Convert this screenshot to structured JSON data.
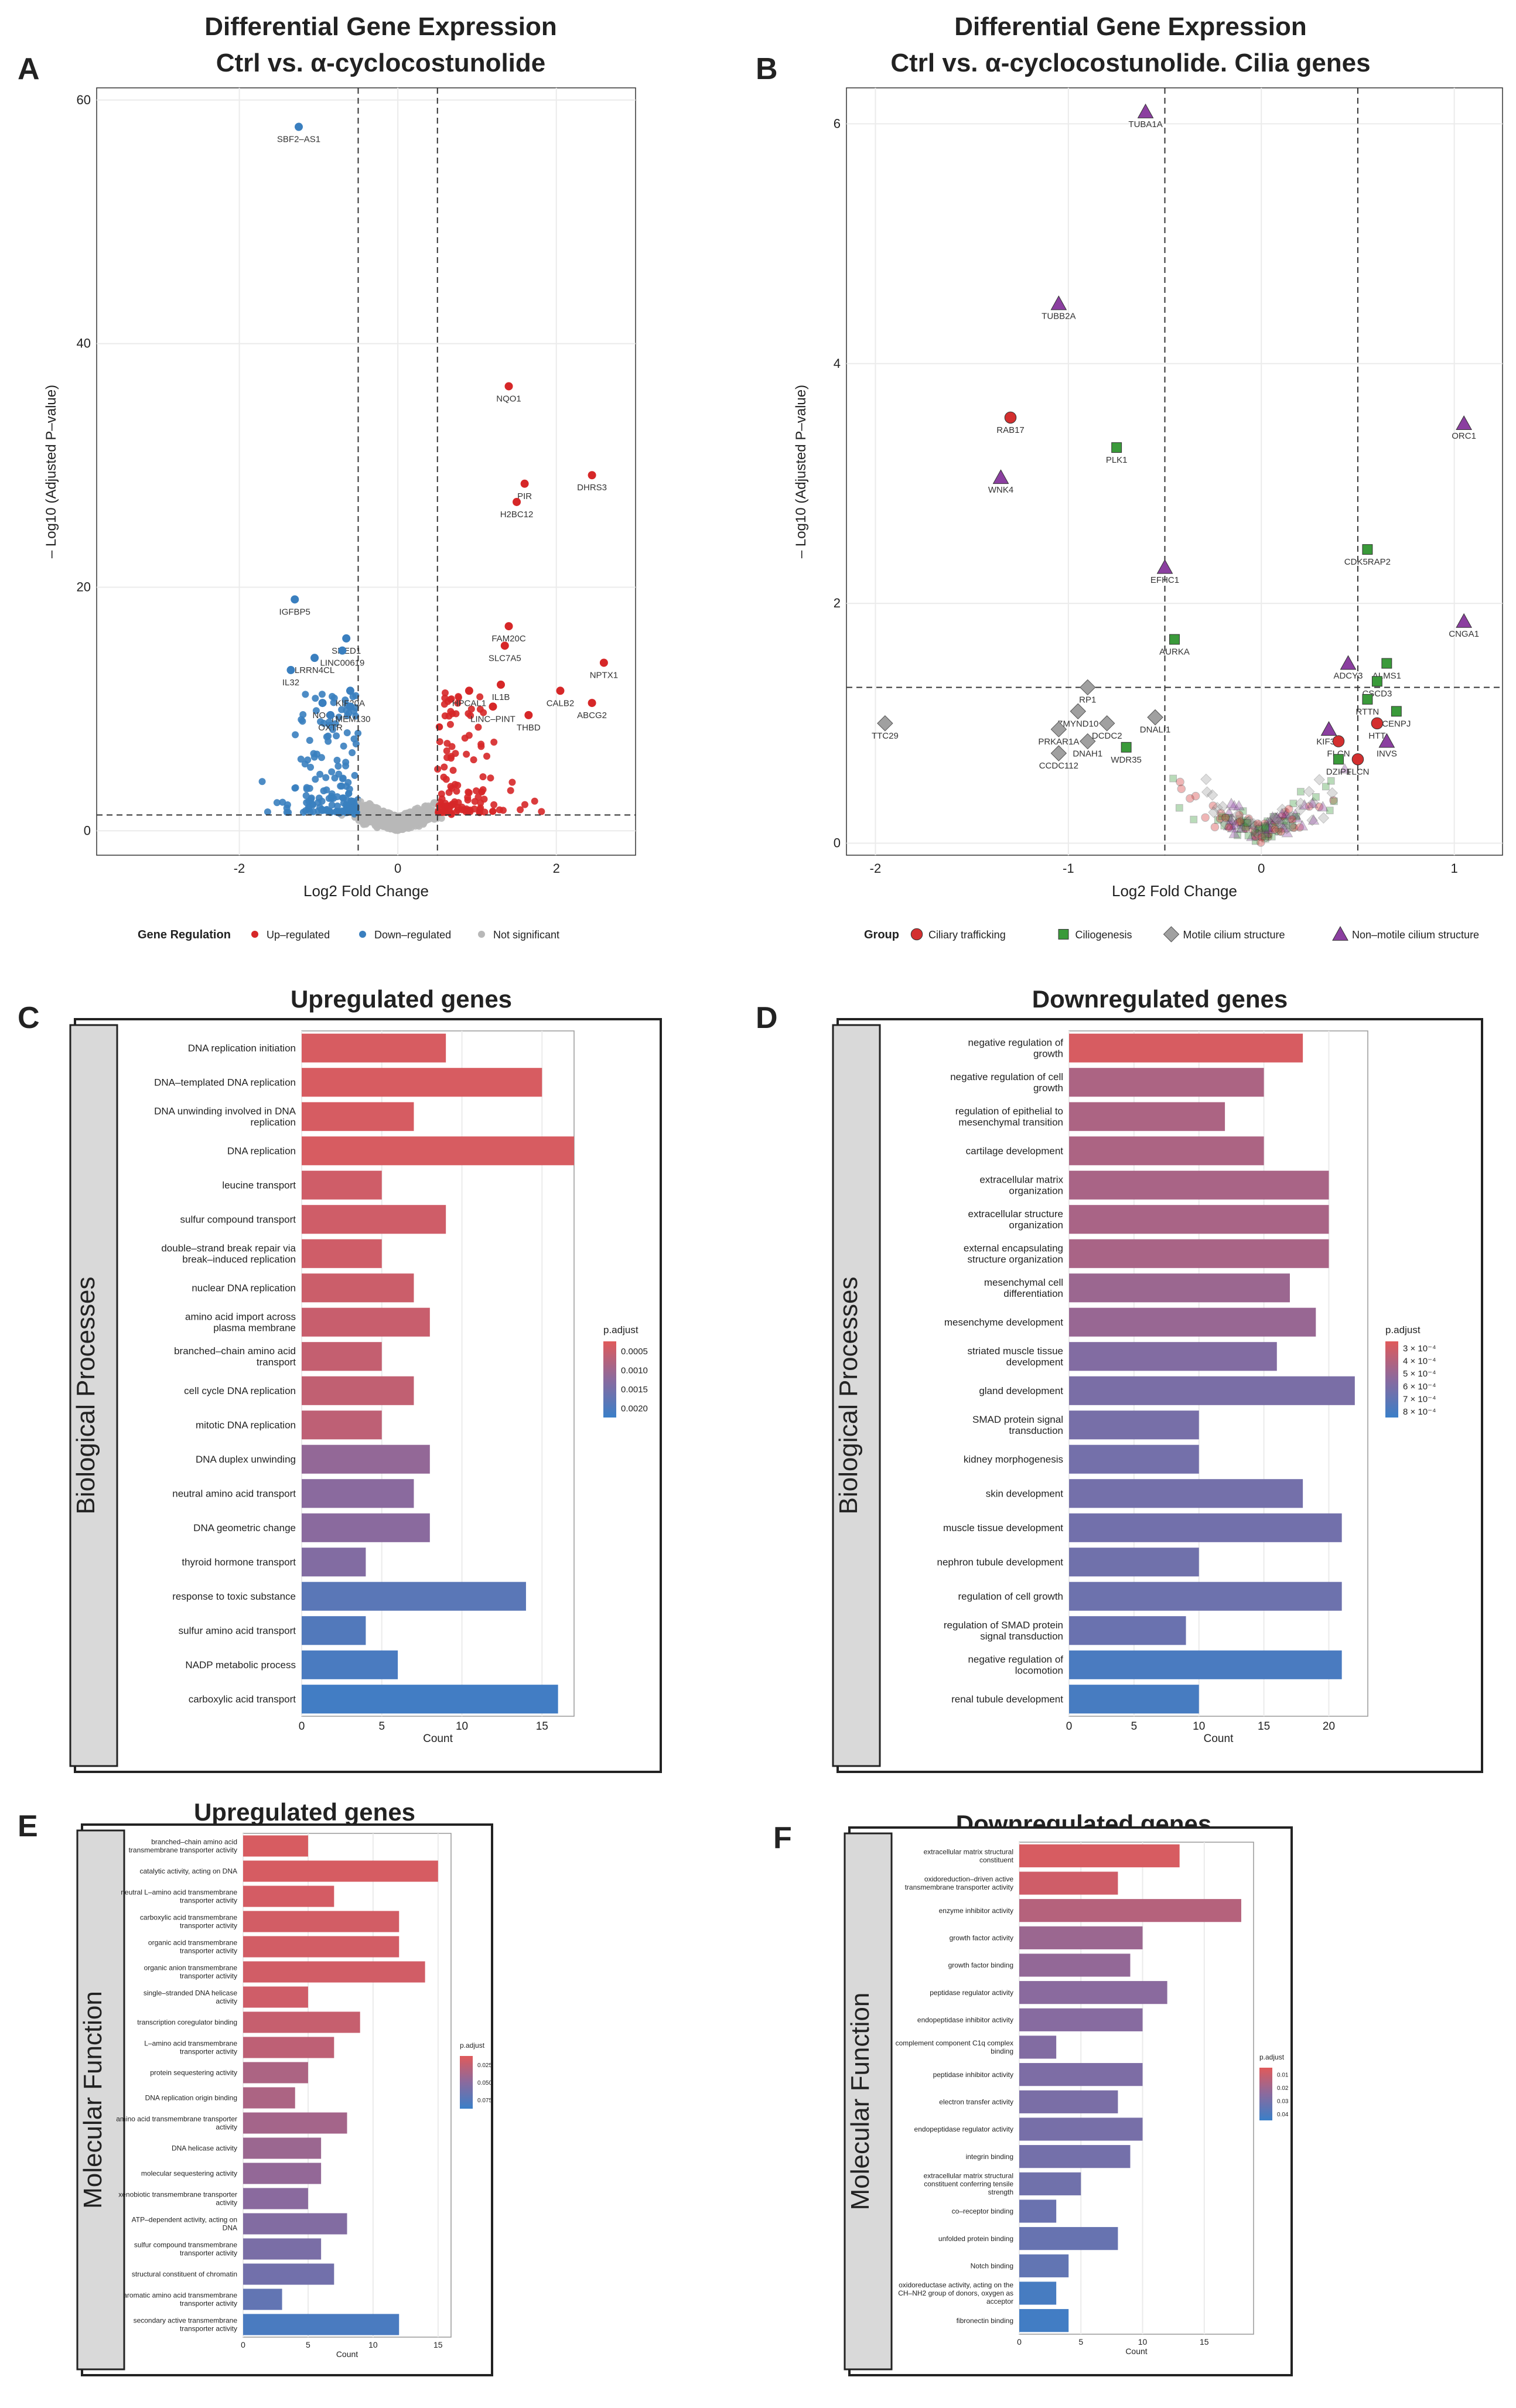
{
  "panels": {
    "A": {
      "letter": "A",
      "title": "Differential Gene Expression",
      "subtitle": "Ctrl vs. α-cyclocostunolide"
    },
    "B": {
      "letter": "B",
      "title": "Differential Gene Expression",
      "subtitle": "Ctrl vs. α-cyclocostunolide. Cilia genes"
    },
    "C": {
      "letter": "C",
      "title": "Upregulated genes",
      "side_label": "Biological Processes"
    },
    "D": {
      "letter": "D",
      "title": "Downregulated genes",
      "side_label": "Biological Processes"
    },
    "E": {
      "letter": "E",
      "title": "Upregulated genes",
      "side_label": "Molecular  Function"
    },
    "F": {
      "letter": "F",
      "title": "Downregulated genes",
      "side_label": "Molecular  Function"
    }
  },
  "colors": {
    "up": "#d62728",
    "down": "#3a7fbf",
    "ns": "#b8b8b8",
    "ciliary": "#d32f2f",
    "ciliogenesis": "#3a9a3a",
    "motile": "#a0a0a0",
    "nonmotile": "#8b3fa0",
    "padj_high": "#e05a5a",
    "padj_low": "#3a7fc8"
  },
  "chart_data": [
    {
      "id": "A",
      "type": "scatter",
      "title": "Differential Gene Expression Ctrl vs. α-cyclocostunolide",
      "xlabel": "Log2 Fold Change",
      "ylabel": "– Log10 (Adjusted P–value)",
      "xlim": [
        -3.8,
        3.0
      ],
      "ylim": [
        -2,
        61
      ],
      "xticks": [
        -2,
        0,
        2
      ],
      "yticks": [
        0,
        20,
        40,
        60
      ],
      "thresholds": {
        "x": [
          -0.5,
          0.5
        ],
        "y": 1.3
      },
      "legend_title": "Gene Regulation",
      "legend": [
        {
          "label": "Up–regulated",
          "color": "#d62728"
        },
        {
          "label": "Down–regulated",
          "color": "#3a7fbf"
        },
        {
          "label": "Not significant",
          "color": "#b8b8b8"
        }
      ],
      "labeled_points": [
        {
          "gene": "SBF2–AS1",
          "x": -1.25,
          "y": 57.8,
          "group": "down"
        },
        {
          "gene": "IGFBP5",
          "x": -1.3,
          "y": 19.0,
          "group": "down"
        },
        {
          "gene": "SNED1",
          "x": -0.65,
          "y": 15.8,
          "group": "down"
        },
        {
          "gene": "LRRN4CL",
          "x": -1.05,
          "y": 14.2,
          "group": "down"
        },
        {
          "gene": "LINC00619",
          "x": -0.7,
          "y": 14.8,
          "group": "down"
        },
        {
          "gene": "IL32",
          "x": -1.35,
          "y": 13.2,
          "group": "down"
        },
        {
          "gene": "KIF20A",
          "x": -0.6,
          "y": 11.5,
          "group": "down"
        },
        {
          "gene": "NOG",
          "x": -0.95,
          "y": 10.5,
          "group": "down"
        },
        {
          "gene": "TMEM130",
          "x": -0.6,
          "y": 10.2,
          "group": "down"
        },
        {
          "gene": "OXTR",
          "x": -0.85,
          "y": 9.5,
          "group": "down"
        },
        {
          "gene": "NQO1",
          "x": 1.4,
          "y": 36.5,
          "group": "up"
        },
        {
          "gene": "PIR",
          "x": 1.6,
          "y": 28.5,
          "group": "up"
        },
        {
          "gene": "DHRS3",
          "x": 2.45,
          "y": 29.2,
          "group": "up"
        },
        {
          "gene": "H2BC12",
          "x": 1.5,
          "y": 27.0,
          "group": "up"
        },
        {
          "gene": "FAM20C",
          "x": 1.4,
          "y": 16.8,
          "group": "up"
        },
        {
          "gene": "SLC7A5",
          "x": 1.35,
          "y": 15.2,
          "group": "up"
        },
        {
          "gene": "NPTX1",
          "x": 2.6,
          "y": 13.8,
          "group": "up"
        },
        {
          "gene": "HPCAL1",
          "x": 0.9,
          "y": 11.5,
          "group": "up"
        },
        {
          "gene": "IL1B",
          "x": 1.3,
          "y": 12.0,
          "group": "up"
        },
        {
          "gene": "CALB2",
          "x": 2.05,
          "y": 11.5,
          "group": "up"
        },
        {
          "gene": "LINC–PINT",
          "x": 1.2,
          "y": 10.2,
          "group": "up"
        },
        {
          "gene": "THBD",
          "x": 1.65,
          "y": 9.5,
          "group": "up"
        },
        {
          "gene": "ABCG2",
          "x": 2.45,
          "y": 10.5,
          "group": "up"
        }
      ]
    },
    {
      "id": "B",
      "type": "scatter",
      "title": "Differential Gene Expression Ctrl vs. α-cyclocostunolide. Cilia genes",
      "xlabel": "Log2 Fold Change",
      "ylabel": "– Log10 (Adjusted P–value)",
      "xlim": [
        -2.15,
        1.25
      ],
      "ylim": [
        -0.1,
        6.3
      ],
      "xticks": [
        -2,
        -1,
        0,
        1
      ],
      "yticks": [
        0,
        2,
        4,
        6
      ],
      "thresholds": {
        "x": [
          -0.5,
          0.5
        ],
        "y": 1.3
      },
      "legend_title": "Group",
      "legend": [
        {
          "label": "Ciliary trafficking",
          "color": "#d32f2f",
          "shape": "circle"
        },
        {
          "label": "Ciliogenesis",
          "color": "#3a9a3a",
          "shape": "square"
        },
        {
          "label": "Motile cilium structure",
          "color": "#a0a0a0",
          "shape": "diamond"
        },
        {
          "label": "Non–motile cilium structure",
          "color": "#8b3fa0",
          "shape": "triangle"
        }
      ],
      "labeled_points": [
        {
          "gene": "TUBA1A",
          "x": -0.6,
          "y": 6.1,
          "group": "nonmotile"
        },
        {
          "gene": "TUBB2A",
          "x": -1.05,
          "y": 4.5,
          "group": "nonmotile"
        },
        {
          "gene": "RAB17",
          "x": -1.3,
          "y": 3.55,
          "group": "ciliary"
        },
        {
          "gene": "PLK1",
          "x": -0.75,
          "y": 3.3,
          "group": "ciliogenesis"
        },
        {
          "gene": "WNK4",
          "x": -1.35,
          "y": 3.05,
          "group": "nonmotile"
        },
        {
          "gene": "ORC1",
          "x": 1.05,
          "y": 3.5,
          "group": "nonmotile"
        },
        {
          "gene": "CDK5RAP2",
          "x": 0.55,
          "y": 2.45,
          "group": "ciliogenesis"
        },
        {
          "gene": "EFHC1",
          "x": -0.5,
          "y": 2.3,
          "group": "nonmotile"
        },
        {
          "gene": "CNGA1",
          "x": 1.05,
          "y": 1.85,
          "group": "nonmotile"
        },
        {
          "gene": "AURKA",
          "x": -0.45,
          "y": 1.7,
          "group": "ciliogenesis"
        },
        {
          "gene": "ALMS1",
          "x": 0.65,
          "y": 1.5,
          "group": "ciliogenesis"
        },
        {
          "gene": "ADCY3",
          "x": 0.45,
          "y": 1.5,
          "group": "nonmotile"
        },
        {
          "gene": "CSCD3",
          "x": 0.6,
          "y": 1.35,
          "group": "ciliogenesis"
        },
        {
          "gene": "RP1",
          "x": -0.9,
          "y": 1.3,
          "group": "motile"
        },
        {
          "gene": "RTTN",
          "x": 0.55,
          "y": 1.2,
          "group": "ciliogenesis"
        },
        {
          "gene": "CENPJ",
          "x": 0.7,
          "y": 1.1,
          "group": "ciliogenesis"
        },
        {
          "gene": "ZMYND10",
          "x": -0.95,
          "y": 1.1,
          "group": "motile"
        },
        {
          "gene": "DNALI1",
          "x": -0.55,
          "y": 1.05,
          "group": "motile"
        },
        {
          "gene": "DCDC2",
          "x": -0.8,
          "y": 1.0,
          "group": "motile"
        },
        {
          "gene": "HTT",
          "x": 0.6,
          "y": 1.0,
          "group": "ciliary"
        },
        {
          "gene": "KIF3C",
          "x": 0.35,
          "y": 0.95,
          "group": "nonmotile"
        },
        {
          "gene": "PRKAR1A",
          "x": -1.05,
          "y": 0.95,
          "group": "motile"
        },
        {
          "gene": "TTC29",
          "x": -1.95,
          "y": 1.0,
          "group": "motile"
        },
        {
          "gene": "DNAH1",
          "x": -0.9,
          "y": 0.85,
          "group": "motile"
        },
        {
          "gene": "FLCN",
          "x": 0.4,
          "y": 0.85,
          "group": "ciliary"
        },
        {
          "gene": "INVS",
          "x": 0.65,
          "y": 0.85,
          "group": "nonmotile"
        },
        {
          "gene": "WDR35",
          "x": -0.7,
          "y": 0.8,
          "group": "ciliogenesis"
        },
        {
          "gene": "CCDC112",
          "x": -1.05,
          "y": 0.75,
          "group": "motile"
        },
        {
          "gene": "DZIP1",
          "x": 0.4,
          "y": 0.7,
          "group": "ciliogenesis"
        },
        {
          "gene": "FLCN",
          "x": 0.5,
          "y": 0.7,
          "group": "ciliary"
        }
      ]
    },
    {
      "id": "C",
      "type": "bar",
      "orientation": "horizontal",
      "title": "Upregulated genes",
      "xlabel": "Count",
      "xlim": [
        0,
        17
      ],
      "xticks": [
        0,
        5,
        10,
        15
      ],
      "legend_title": "p.adjust",
      "legend_ticks": [
        "0.0005",
        "0.0010",
        "0.0015",
        "0.0020"
      ],
      "categories": [
        "DNA replication initiation",
        "DNA–templated DNA replication",
        "DNA unwinding involved in DNA replication",
        "DNA replication",
        "leucine transport",
        "sulfur compound transport",
        "double–strand break repair via break–induced replication",
        "nuclear DNA replication",
        "amino acid import across plasma membrane",
        "branched–chain amino acid transport",
        "cell cycle DNA replication",
        "mitotic DNA replication",
        "DNA duplex unwinding",
        "neutral amino acid transport",
        "DNA geometric change",
        "thyroid hormone transport",
        "response to toxic substance",
        "sulfur amino acid transport",
        "NADP metabolic process",
        "carboxylic acid transport"
      ],
      "values": [
        9,
        15,
        7,
        17,
        5,
        9,
        5,
        7,
        8,
        5,
        7,
        5,
        8,
        7,
        8,
        4,
        14,
        4,
        6,
        16
      ],
      "p_adjust_rank": [
        0.05,
        0.05,
        0.06,
        0.05,
        0.1,
        0.1,
        0.1,
        0.12,
        0.14,
        0.16,
        0.18,
        0.2,
        0.45,
        0.5,
        0.5,
        0.55,
        0.8,
        0.85,
        0.9,
        0.95
      ]
    },
    {
      "id": "D",
      "type": "bar",
      "orientation": "horizontal",
      "title": "Downregulated genes",
      "xlabel": "Count",
      "xlim": [
        0,
        23
      ],
      "xticks": [
        0,
        5,
        10,
        15,
        20
      ],
      "legend_title": "p.adjust",
      "legend_ticks": [
        "3 × 10⁻⁴",
        "4 × 10⁻⁴",
        "5 × 10⁻⁴",
        "6 × 10⁻⁴",
        "7 × 10⁻⁴",
        "8 × 10⁻⁴"
      ],
      "categories": [
        "negative regulation of growth",
        "negative regulation of cell growth",
        "regulation of epithelial to mesenchymal transition",
        "cartilage development",
        "extracellular matrix organization",
        "extracellular structure organization",
        "external encapsulating structure organization",
        "mesenchymal cell differentiation",
        "mesenchyme development",
        "striated muscle tissue development",
        "gland development",
        "SMAD protein signal transduction",
        "kidney morphogenesis",
        "skin development",
        "muscle tissue development",
        "nephron tubule development",
        "regulation of cell growth",
        "regulation of SMAD protein signal transduction",
        "negative regulation of locomotion",
        "renal tubule development"
      ],
      "values": [
        18,
        15,
        12,
        15,
        20,
        20,
        20,
        17,
        19,
        16,
        22,
        10,
        10,
        18,
        21,
        10,
        21,
        9,
        21,
        10
      ],
      "p_adjust_rank": [
        0.05,
        0.3,
        0.3,
        0.3,
        0.32,
        0.32,
        0.32,
        0.4,
        0.42,
        0.55,
        0.6,
        0.62,
        0.64,
        0.64,
        0.65,
        0.66,
        0.68,
        0.7,
        0.9,
        0.92
      ]
    },
    {
      "id": "E",
      "type": "bar",
      "orientation": "horizontal",
      "title": "Upregulated genes",
      "xlabel": "Count",
      "xlim": [
        0,
        16
      ],
      "xticks": [
        0,
        5,
        10,
        15
      ],
      "legend_title": "p.adjust",
      "legend_ticks": [
        "0.025",
        "0.050",
        "0.075"
      ],
      "categories": [
        "branched–chain amino acid transmembrane transporter activity",
        "catalytic activity, acting on DNA",
        "neutral L–amino acid transmembrane transporter activity",
        "carboxylic acid transmembrane transporter activity",
        "organic acid transmembrane transporter activity",
        "organic anion transmembrane transporter activity",
        "single–stranded DNA helicase activity",
        "transcription coregulator binding",
        "L–amino acid transmembrane transporter activity",
        "protein sequestering activity",
        "DNA replication origin binding",
        "amino acid transmembrane transporter activity",
        "DNA helicase activity",
        "molecular sequestering activity",
        "xenobiotic transmembrane transporter activity",
        "ATP–dependent activity, acting on DNA",
        "sulfur compound transmembrane transporter activity",
        "structural constituent of chromatin",
        "aromatic amino acid transmembrane transporter activity",
        "secondary active transmembrane transporter activity"
      ],
      "values": [
        5,
        15,
        7,
        12,
        12,
        14,
        5,
        9,
        7,
        5,
        4,
        8,
        6,
        6,
        5,
        8,
        6,
        7,
        3,
        12
      ],
      "p_adjust_rank": [
        0.05,
        0.06,
        0.07,
        0.08,
        0.08,
        0.09,
        0.1,
        0.15,
        0.2,
        0.3,
        0.3,
        0.35,
        0.4,
        0.45,
        0.5,
        0.55,
        0.6,
        0.65,
        0.75,
        0.9
      ]
    },
    {
      "id": "F",
      "type": "bar",
      "orientation": "horizontal",
      "title": "Downregulated genes",
      "xlabel": "Count",
      "xlim": [
        0,
        19
      ],
      "xticks": [
        0,
        5,
        10,
        15
      ],
      "legend_title": "p.adjust",
      "legend_ticks": [
        "0.01",
        "0.02",
        "0.03",
        "0.04"
      ],
      "categories": [
        "extracellular matrix structural constituent",
        "oxidoreduction–driven active transmembrane transporter activity",
        "enzyme inhibitor activity",
        "growth factor activity",
        "growth factor binding",
        "peptidase regulator activity",
        "endopeptidase inhibitor activity",
        "complement component C1q complex binding",
        "peptidase inhibitor activity",
        "electron transfer activity",
        "endopeptidase regulator activity",
        "integrin binding",
        "extracellular matrix structural constituent conferring tensile strength",
        "co–receptor binding",
        "unfolded protein binding",
        "Notch binding",
        "oxidoreductase activity, acting on the CH–NH2 group of donors, oxygen as acceptor",
        "fibronectin binding"
      ],
      "values": [
        13,
        8,
        18,
        10,
        9,
        12,
        10,
        3,
        10,
        8,
        10,
        9,
        5,
        3,
        8,
        4,
        3,
        4
      ],
      "p_adjust_rank": [
        0.05,
        0.1,
        0.25,
        0.4,
        0.45,
        0.5,
        0.52,
        0.55,
        0.58,
        0.6,
        0.62,
        0.64,
        0.66,
        0.7,
        0.72,
        0.75,
        0.92,
        0.95
      ]
    }
  ]
}
